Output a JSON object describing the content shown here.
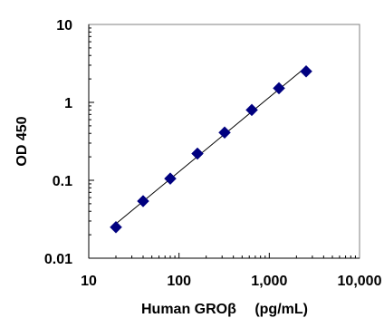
{
  "chart_data": {
    "type": "scatter",
    "xscale": "log",
    "yscale": "log",
    "xlim": [
      10,
      10000
    ],
    "ylim": [
      0.01,
      10
    ],
    "x_ticks": [
      {
        "value": 10,
        "label": "10"
      },
      {
        "value": 100,
        "label": "100"
      },
      {
        "value": 1000,
        "label": "1,000"
      },
      {
        "value": 10000,
        "label": "10,000"
      }
    ],
    "y_ticks": [
      {
        "value": 0.01,
        "label": "0.01"
      },
      {
        "value": 0.1,
        "label": "0.1"
      },
      {
        "value": 1,
        "label": "1"
      },
      {
        "value": 10,
        "label": "10"
      }
    ],
    "xlabel": "Human GROβ　 (pg/mL)",
    "ylabel": "OD 450",
    "grid": false,
    "trendline": true,
    "marker": "diamond",
    "marker_color": "#000080",
    "series": [
      {
        "x": [
          20,
          40,
          80,
          160,
          320,
          640,
          1280,
          2560
        ],
        "y": [
          0.025,
          0.054,
          0.105,
          0.22,
          0.41,
          0.8,
          1.52,
          2.5
        ]
      }
    ]
  }
}
